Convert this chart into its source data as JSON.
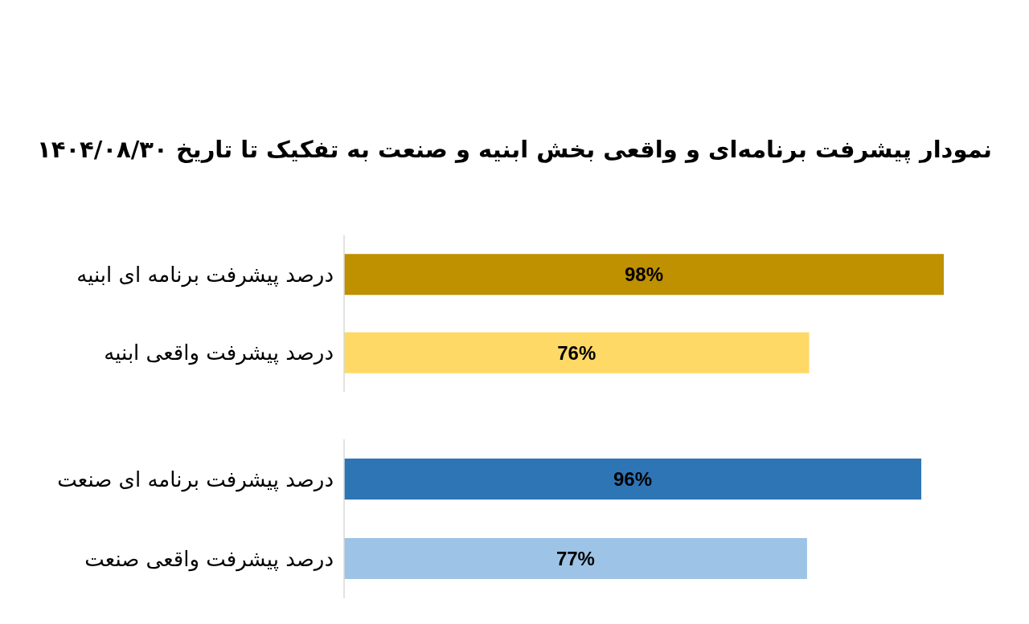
{
  "chart_data": [
    {
      "type": "bar",
      "orientation": "horizontal",
      "title": "نمودار پیشرفت برنامه‌ای و واقعی بخش ابنیه و صنعت به تفکیک تا تاریخ ۱۴۰۴/۰۸/۳۰",
      "categories": [
        "درصد پیشرفت برنامه ای ابنیه",
        "درصد پیشرفت واقعی ابنیه"
      ],
      "values": [
        98,
        76
      ],
      "colors": [
        "#bf9000",
        "#ffd966"
      ],
      "value_labels": [
        "98%",
        "76%"
      ],
      "tick_labels": "y"
    },
    {
      "type": "bar",
      "orientation": "horizontal",
      "categories": [
        "درصد پیشرفت برنامه ای صنعت",
        "درصد پیشرفت واقعی صنعت"
      ],
      "values": [
        96,
        77
      ],
      "colors": [
        "#2e75b6",
        "#9dc3e6"
      ],
      "value_labels": [
        "96%",
        "77%"
      ],
      "tick_labels": "y"
    }
  ]
}
